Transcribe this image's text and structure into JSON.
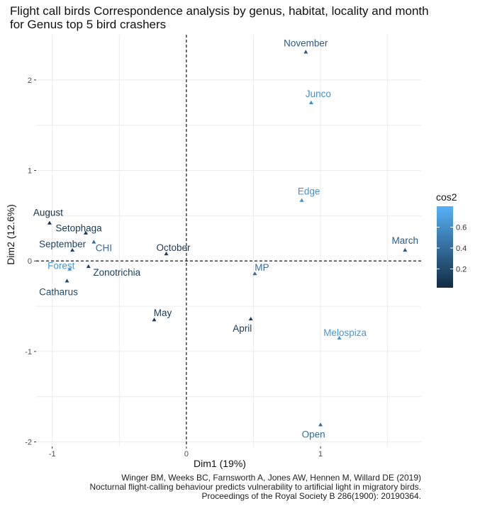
{
  "title": "Flight call birds Correspondence analysis by genus, habitat, locality and month\nfor Genus top 5 bird crashers",
  "caption": "Winger BM, Weeks BC, Farnsworth A, Jones AW, Hennen M, Willard DE (2019)\nNocturnal flight-calling behaviour predicts vulnerability to artificial light in migratory birds.\nProceedings of the Royal Society B 286(1900): 20190364.",
  "chart_data": {
    "type": "scatter",
    "xlabel": "Dim1 (19%)",
    "ylabel": "Dim2 (12.6%)",
    "xlim": [
      -1.12,
      1.75
    ],
    "ylim": [
      -2.05,
      2.5
    ],
    "xticks": [
      -1,
      -0.5,
      0,
      0.5,
      1,
      1.5
    ],
    "xtick_labels": [
      "-1",
      "",
      "0",
      "",
      "1",
      ""
    ],
    "yticks": [
      -2,
      -1.5,
      -1,
      -0.5,
      0,
      0.5,
      1,
      1.5,
      2
    ],
    "ytick_labels": [
      "-2",
      "",
      "-1",
      "",
      "0",
      "",
      "1",
      "",
      "2"
    ],
    "grid": true,
    "reference_lines": {
      "x": 0,
      "y": 0,
      "style": "dashed"
    },
    "legend": {
      "title": "cos2",
      "placement": "right",
      "ticks": [
        0.2,
        0.4,
        0.6
      ],
      "tick_labels": [
        "0.2",
        "0.4",
        "0.6"
      ],
      "range": [
        0.02,
        0.8
      ],
      "low_color": "#132B43",
      "high_color": "#56B1F7"
    },
    "points": [
      {
        "label": "November",
        "x": 0.89,
        "y": 2.31,
        "cos2": 0.3
      },
      {
        "label": "Junco",
        "x": 0.93,
        "y": 1.75,
        "cos2": 0.6
      },
      {
        "label": "Edge",
        "x": 0.86,
        "y": 0.67,
        "cos2": 0.62
      },
      {
        "label": "March",
        "x": 1.63,
        "y": 0.12,
        "cos2": 0.3
      },
      {
        "label": "August",
        "x": -1.02,
        "y": 0.42,
        "cos2": 0.05
      },
      {
        "label": "Setophaga",
        "x": -0.75,
        "y": 0.31,
        "cos2": 0.1
      },
      {
        "label": "September",
        "x": -0.85,
        "y": 0.12,
        "cos2": 0.15
      },
      {
        "label": "CHI",
        "x": -0.69,
        "y": 0.21,
        "cos2": 0.4
      },
      {
        "label": "October",
        "x": -0.15,
        "y": 0.08,
        "cos2": 0.12
      },
      {
        "label": "Forest",
        "x": -0.87,
        "y": -0.09,
        "cos2": 0.65
      },
      {
        "label": "Zonotrichia",
        "x": -0.73,
        "y": -0.06,
        "cos2": 0.15
      },
      {
        "label": "Catharus",
        "x": -0.89,
        "y": -0.22,
        "cos2": 0.2
      },
      {
        "label": "MP",
        "x": 0.51,
        "y": -0.14,
        "cos2": 0.4
      },
      {
        "label": "May",
        "x": -0.24,
        "y": -0.65,
        "cos2": 0.1
      },
      {
        "label": "April",
        "x": 0.48,
        "y": -0.64,
        "cos2": 0.12
      },
      {
        "label": "Melospiza",
        "x": 1.14,
        "y": -0.85,
        "cos2": 0.65
      },
      {
        "label": "Open",
        "x": 1.0,
        "y": -1.81,
        "cos2": 0.4
      }
    ]
  }
}
